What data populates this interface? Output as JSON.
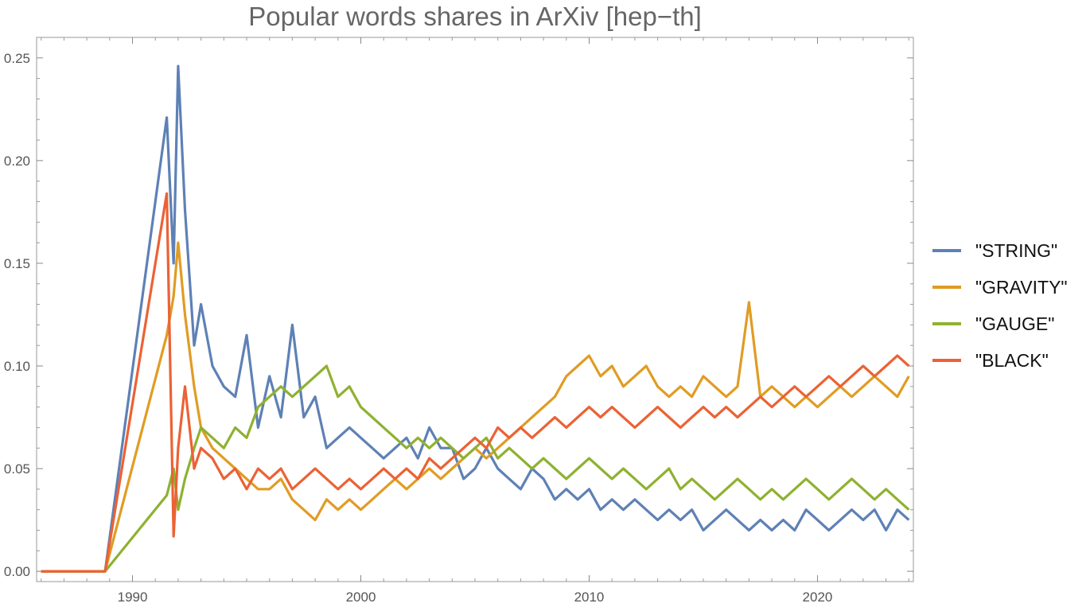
{
  "chart_data": {
    "type": "line",
    "title": "Popular words shares in ArXiv [hep−th]",
    "xlabel": "",
    "ylabel": "",
    "xlim": [
      1985.8,
      2024.2
    ],
    "ylim": [
      -0.005,
      0.26
    ],
    "x_ticks": [
      1990,
      2000,
      2010,
      2020
    ],
    "y_ticks": [
      0.0,
      0.05,
      0.1,
      0.15,
      0.2,
      0.25
    ],
    "y_tick_labels": [
      "0.00",
      "0.05",
      "0.10",
      "0.15",
      "0.20",
      "0.25"
    ],
    "grid": false,
    "legend_position": "right",
    "series": [
      {
        "name": "\"STRING\"",
        "color": "#5E81B5",
        "x": [
          1986.0,
          1988.8,
          1991.5,
          1991.8,
          1992.0,
          1992.3,
          1992.7,
          1993.0,
          1993.5,
          1994.0,
          1994.5,
          1995.0,
          1995.5,
          1996.0,
          1996.5,
          1997.0,
          1997.5,
          1998.0,
          1998.5,
          1999.0,
          1999.5,
          2000.0,
          2000.5,
          2001.0,
          2001.5,
          2002.0,
          2002.5,
          2003.0,
          2003.5,
          2004.0,
          2004.5,
          2005.0,
          2005.5,
          2006.0,
          2006.5,
          2007.0,
          2007.5,
          2008.0,
          2008.5,
          2009.0,
          2009.5,
          2010.0,
          2010.5,
          2011.0,
          2011.5,
          2012.0,
          2012.5,
          2013.0,
          2013.5,
          2014.0,
          2014.5,
          2015.0,
          2015.5,
          2016.0,
          2016.5,
          2017.0,
          2017.5,
          2018.0,
          2018.5,
          2019.0,
          2019.5,
          2020.0,
          2020.5,
          2021.0,
          2021.5,
          2022.0,
          2022.5,
          2023.0,
          2023.5,
          2024.0
        ],
        "values": [
          0.0,
          0.0,
          0.221,
          0.15,
          0.246,
          0.176,
          0.11,
          0.13,
          0.1,
          0.09,
          0.085,
          0.115,
          0.07,
          0.095,
          0.075,
          0.12,
          0.075,
          0.085,
          0.06,
          0.065,
          0.07,
          0.065,
          0.06,
          0.055,
          0.06,
          0.065,
          0.055,
          0.07,
          0.06,
          0.06,
          0.045,
          0.05,
          0.06,
          0.05,
          0.045,
          0.04,
          0.05,
          0.045,
          0.035,
          0.04,
          0.035,
          0.04,
          0.03,
          0.035,
          0.03,
          0.035,
          0.03,
          0.025,
          0.03,
          0.025,
          0.03,
          0.02,
          0.025,
          0.03,
          0.025,
          0.02,
          0.025,
          0.02,
          0.025,
          0.02,
          0.03,
          0.025,
          0.02,
          0.025,
          0.03,
          0.025,
          0.03,
          0.02,
          0.03,
          0.025
        ]
      },
      {
        "name": "\"GRAVITY\"",
        "color": "#E09C24",
        "x": [
          1986.0,
          1988.8,
          1991.5,
          1991.8,
          1992.0,
          1992.3,
          1992.7,
          1993.0,
          1993.5,
          1994.0,
          1994.5,
          1995.0,
          1995.5,
          1996.0,
          1996.5,
          1997.0,
          1997.5,
          1998.0,
          1998.5,
          1999.0,
          1999.5,
          2000.0,
          2000.5,
          2001.0,
          2001.5,
          2002.0,
          2002.5,
          2003.0,
          2003.5,
          2004.0,
          2004.5,
          2005.0,
          2005.5,
          2006.0,
          2006.5,
          2007.0,
          2007.5,
          2008.0,
          2008.5,
          2009.0,
          2009.5,
          2010.0,
          2010.5,
          2011.0,
          2011.5,
          2012.0,
          2012.5,
          2013.0,
          2013.5,
          2014.0,
          2014.5,
          2015.0,
          2015.5,
          2016.0,
          2016.5,
          2017.0,
          2017.5,
          2018.0,
          2018.5,
          2019.0,
          2019.5,
          2020.0,
          2020.5,
          2021.0,
          2021.5,
          2022.0,
          2022.5,
          2023.0,
          2023.5,
          2024.0
        ],
        "values": [
          0.0,
          0.0,
          0.115,
          0.134,
          0.16,
          0.125,
          0.09,
          0.07,
          0.06,
          0.055,
          0.05,
          0.045,
          0.04,
          0.04,
          0.045,
          0.035,
          0.03,
          0.025,
          0.035,
          0.03,
          0.035,
          0.03,
          0.035,
          0.04,
          0.045,
          0.04,
          0.045,
          0.05,
          0.045,
          0.05,
          0.055,
          0.06,
          0.055,
          0.06,
          0.065,
          0.07,
          0.075,
          0.08,
          0.085,
          0.095,
          0.1,
          0.105,
          0.095,
          0.1,
          0.09,
          0.095,
          0.1,
          0.09,
          0.085,
          0.09,
          0.085,
          0.095,
          0.09,
          0.085,
          0.09,
          0.131,
          0.085,
          0.09,
          0.085,
          0.08,
          0.085,
          0.08,
          0.085,
          0.09,
          0.085,
          0.09,
          0.095,
          0.09,
          0.085,
          0.095
        ]
      },
      {
        "name": "\"GAUGE\"",
        "color": "#8FB131",
        "x": [
          1986.0,
          1988.8,
          1991.5,
          1991.8,
          1992.0,
          1992.3,
          1992.7,
          1993.0,
          1993.5,
          1994.0,
          1994.5,
          1995.0,
          1995.5,
          1996.0,
          1996.5,
          1997.0,
          1997.5,
          1998.0,
          1998.5,
          1999.0,
          1999.5,
          2000.0,
          2000.5,
          2001.0,
          2001.5,
          2002.0,
          2002.5,
          2003.0,
          2003.5,
          2004.0,
          2004.5,
          2005.0,
          2005.5,
          2006.0,
          2006.5,
          2007.0,
          2007.5,
          2008.0,
          2008.5,
          2009.0,
          2009.5,
          2010.0,
          2010.5,
          2011.0,
          2011.5,
          2012.0,
          2012.5,
          2013.0,
          2013.5,
          2014.0,
          2014.5,
          2015.0,
          2015.5,
          2016.0,
          2016.5,
          2017.0,
          2017.5,
          2018.0,
          2018.5,
          2019.0,
          2019.5,
          2020.0,
          2020.5,
          2021.0,
          2021.5,
          2022.0,
          2022.5,
          2023.0,
          2023.5,
          2024.0
        ],
        "values": [
          0.0,
          0.0,
          0.037,
          0.05,
          0.03,
          0.045,
          0.06,
          0.07,
          0.065,
          0.06,
          0.07,
          0.065,
          0.08,
          0.085,
          0.09,
          0.085,
          0.09,
          0.095,
          0.1,
          0.085,
          0.09,
          0.08,
          0.075,
          0.07,
          0.065,
          0.06,
          0.065,
          0.06,
          0.065,
          0.06,
          0.055,
          0.06,
          0.065,
          0.055,
          0.06,
          0.055,
          0.05,
          0.055,
          0.05,
          0.045,
          0.05,
          0.055,
          0.05,
          0.045,
          0.05,
          0.045,
          0.04,
          0.045,
          0.05,
          0.04,
          0.045,
          0.04,
          0.035,
          0.04,
          0.045,
          0.04,
          0.035,
          0.04,
          0.035,
          0.04,
          0.045,
          0.04,
          0.035,
          0.04,
          0.045,
          0.04,
          0.035,
          0.04,
          0.035,
          0.03
        ]
      },
      {
        "name": "\"BLACK\"",
        "color": "#EB6235",
        "x": [
          1986.0,
          1988.8,
          1991.5,
          1991.8,
          1992.0,
          1992.3,
          1992.7,
          1993.0,
          1993.5,
          1994.0,
          1994.5,
          1995.0,
          1995.5,
          1996.0,
          1996.5,
          1997.0,
          1997.5,
          1998.0,
          1998.5,
          1999.0,
          1999.5,
          2000.0,
          2000.5,
          2001.0,
          2001.5,
          2002.0,
          2002.5,
          2003.0,
          2003.5,
          2004.0,
          2004.5,
          2005.0,
          2005.5,
          2006.0,
          2006.5,
          2007.0,
          2007.5,
          2008.0,
          2008.5,
          2009.0,
          2009.5,
          2010.0,
          2010.5,
          2011.0,
          2011.5,
          2012.0,
          2012.5,
          2013.0,
          2013.5,
          2014.0,
          2014.5,
          2015.0,
          2015.5,
          2016.0,
          2016.5,
          2017.0,
          2017.5,
          2018.0,
          2018.5,
          2019.0,
          2019.5,
          2020.0,
          2020.5,
          2021.0,
          2021.5,
          2022.0,
          2022.5,
          2023.0,
          2023.5,
          2024.0
        ],
        "values": [
          0.0,
          0.0,
          0.184,
          0.017,
          0.06,
          0.09,
          0.05,
          0.06,
          0.055,
          0.045,
          0.05,
          0.04,
          0.05,
          0.045,
          0.05,
          0.04,
          0.045,
          0.05,
          0.045,
          0.04,
          0.045,
          0.04,
          0.045,
          0.05,
          0.045,
          0.05,
          0.045,
          0.055,
          0.05,
          0.055,
          0.06,
          0.065,
          0.06,
          0.07,
          0.065,
          0.07,
          0.065,
          0.07,
          0.075,
          0.07,
          0.075,
          0.08,
          0.075,
          0.08,
          0.075,
          0.07,
          0.075,
          0.08,
          0.075,
          0.07,
          0.075,
          0.08,
          0.075,
          0.08,
          0.075,
          0.08,
          0.085,
          0.08,
          0.085,
          0.09,
          0.085,
          0.09,
          0.095,
          0.09,
          0.095,
          0.1,
          0.095,
          0.1,
          0.105,
          0.1
        ]
      }
    ]
  }
}
